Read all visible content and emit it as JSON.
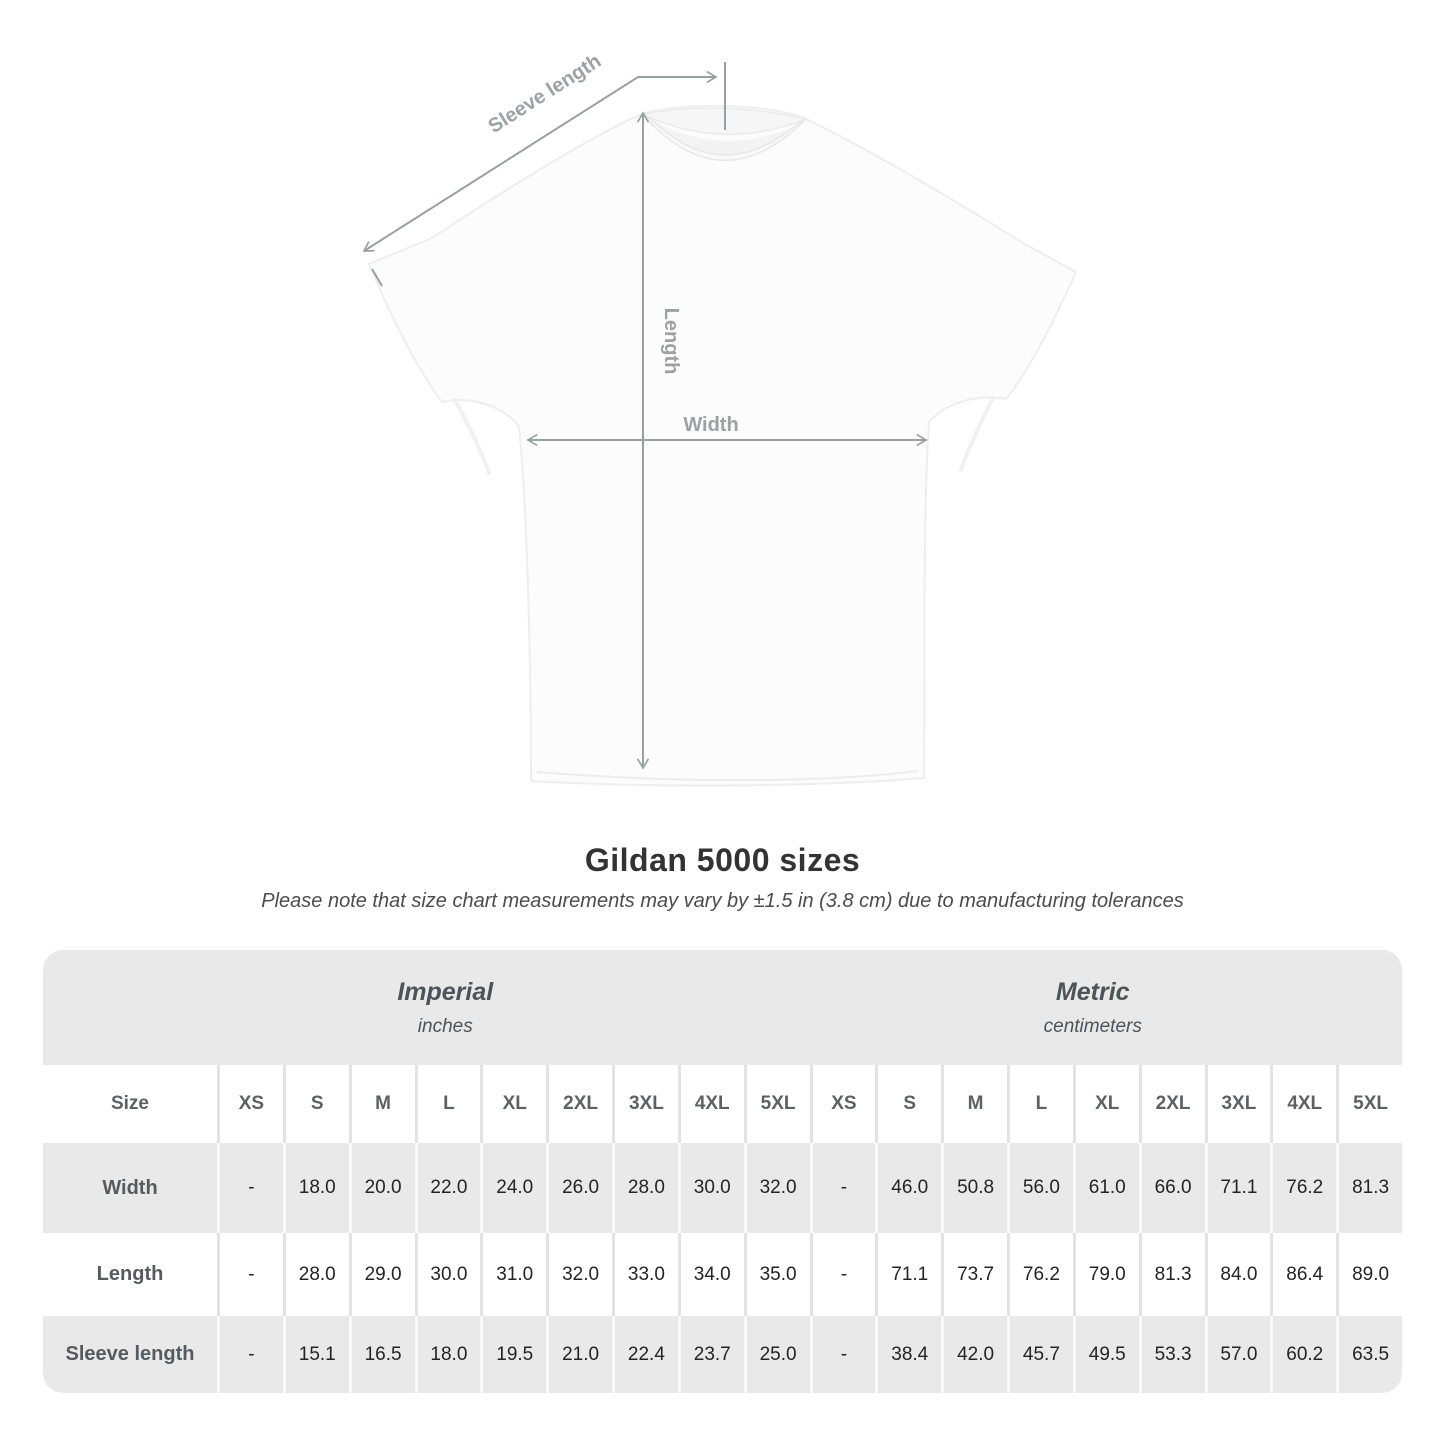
{
  "shirt_diagram": {
    "sleeve_length_label": "Sleeve length",
    "length_label": "Length",
    "width_label": "Width"
  },
  "caption": {
    "title": "Gildan 5000 sizes",
    "subtitle": "Please note that size chart measurements may vary by ±1.5 in (3.8 cm) due to manufacturing tolerances"
  },
  "table": {
    "size_header": "Size",
    "sizes": [
      "XS",
      "S",
      "M",
      "L",
      "XL",
      "2XL",
      "3XL",
      "4XL",
      "5XL"
    ],
    "unit_sections": [
      {
        "name": "Imperial",
        "unit": "inches"
      },
      {
        "name": "Metric",
        "unit": "centimeters"
      }
    ],
    "rows": [
      {
        "label": "Width",
        "imperial": [
          "-",
          "18.0",
          "20.0",
          "22.0",
          "24.0",
          "26.0",
          "28.0",
          "30.0",
          "32.0"
        ],
        "metric": [
          "-",
          "46.0",
          "50.8",
          "56.0",
          "61.0",
          "66.0",
          "71.1",
          "76.2",
          "81.3"
        ]
      },
      {
        "label": "Length",
        "imperial": [
          "-",
          "28.0",
          "29.0",
          "30.0",
          "31.0",
          "32.0",
          "33.0",
          "34.0",
          "35.0"
        ],
        "metric": [
          "-",
          "71.1",
          "73.7",
          "76.2",
          "79.0",
          "81.3",
          "84.0",
          "86.4",
          "89.0"
        ]
      },
      {
        "label": "Sleeve length",
        "imperial": [
          "-",
          "15.1",
          "16.5",
          "18.0",
          "19.5",
          "21.0",
          "22.4",
          "23.7",
          "25.0"
        ],
        "metric": [
          "-",
          "38.4",
          "42.0",
          "45.7",
          "49.5",
          "53.3",
          "57.0",
          "60.2",
          "63.5"
        ]
      }
    ]
  },
  "colors": {
    "row_stripe": "#e9e9e9",
    "measure_line": "#99a0a3",
    "measure_text": "#9ba1a5",
    "title_text": "#333333",
    "value_text": "#242424",
    "label_text": "#565b5f"
  }
}
